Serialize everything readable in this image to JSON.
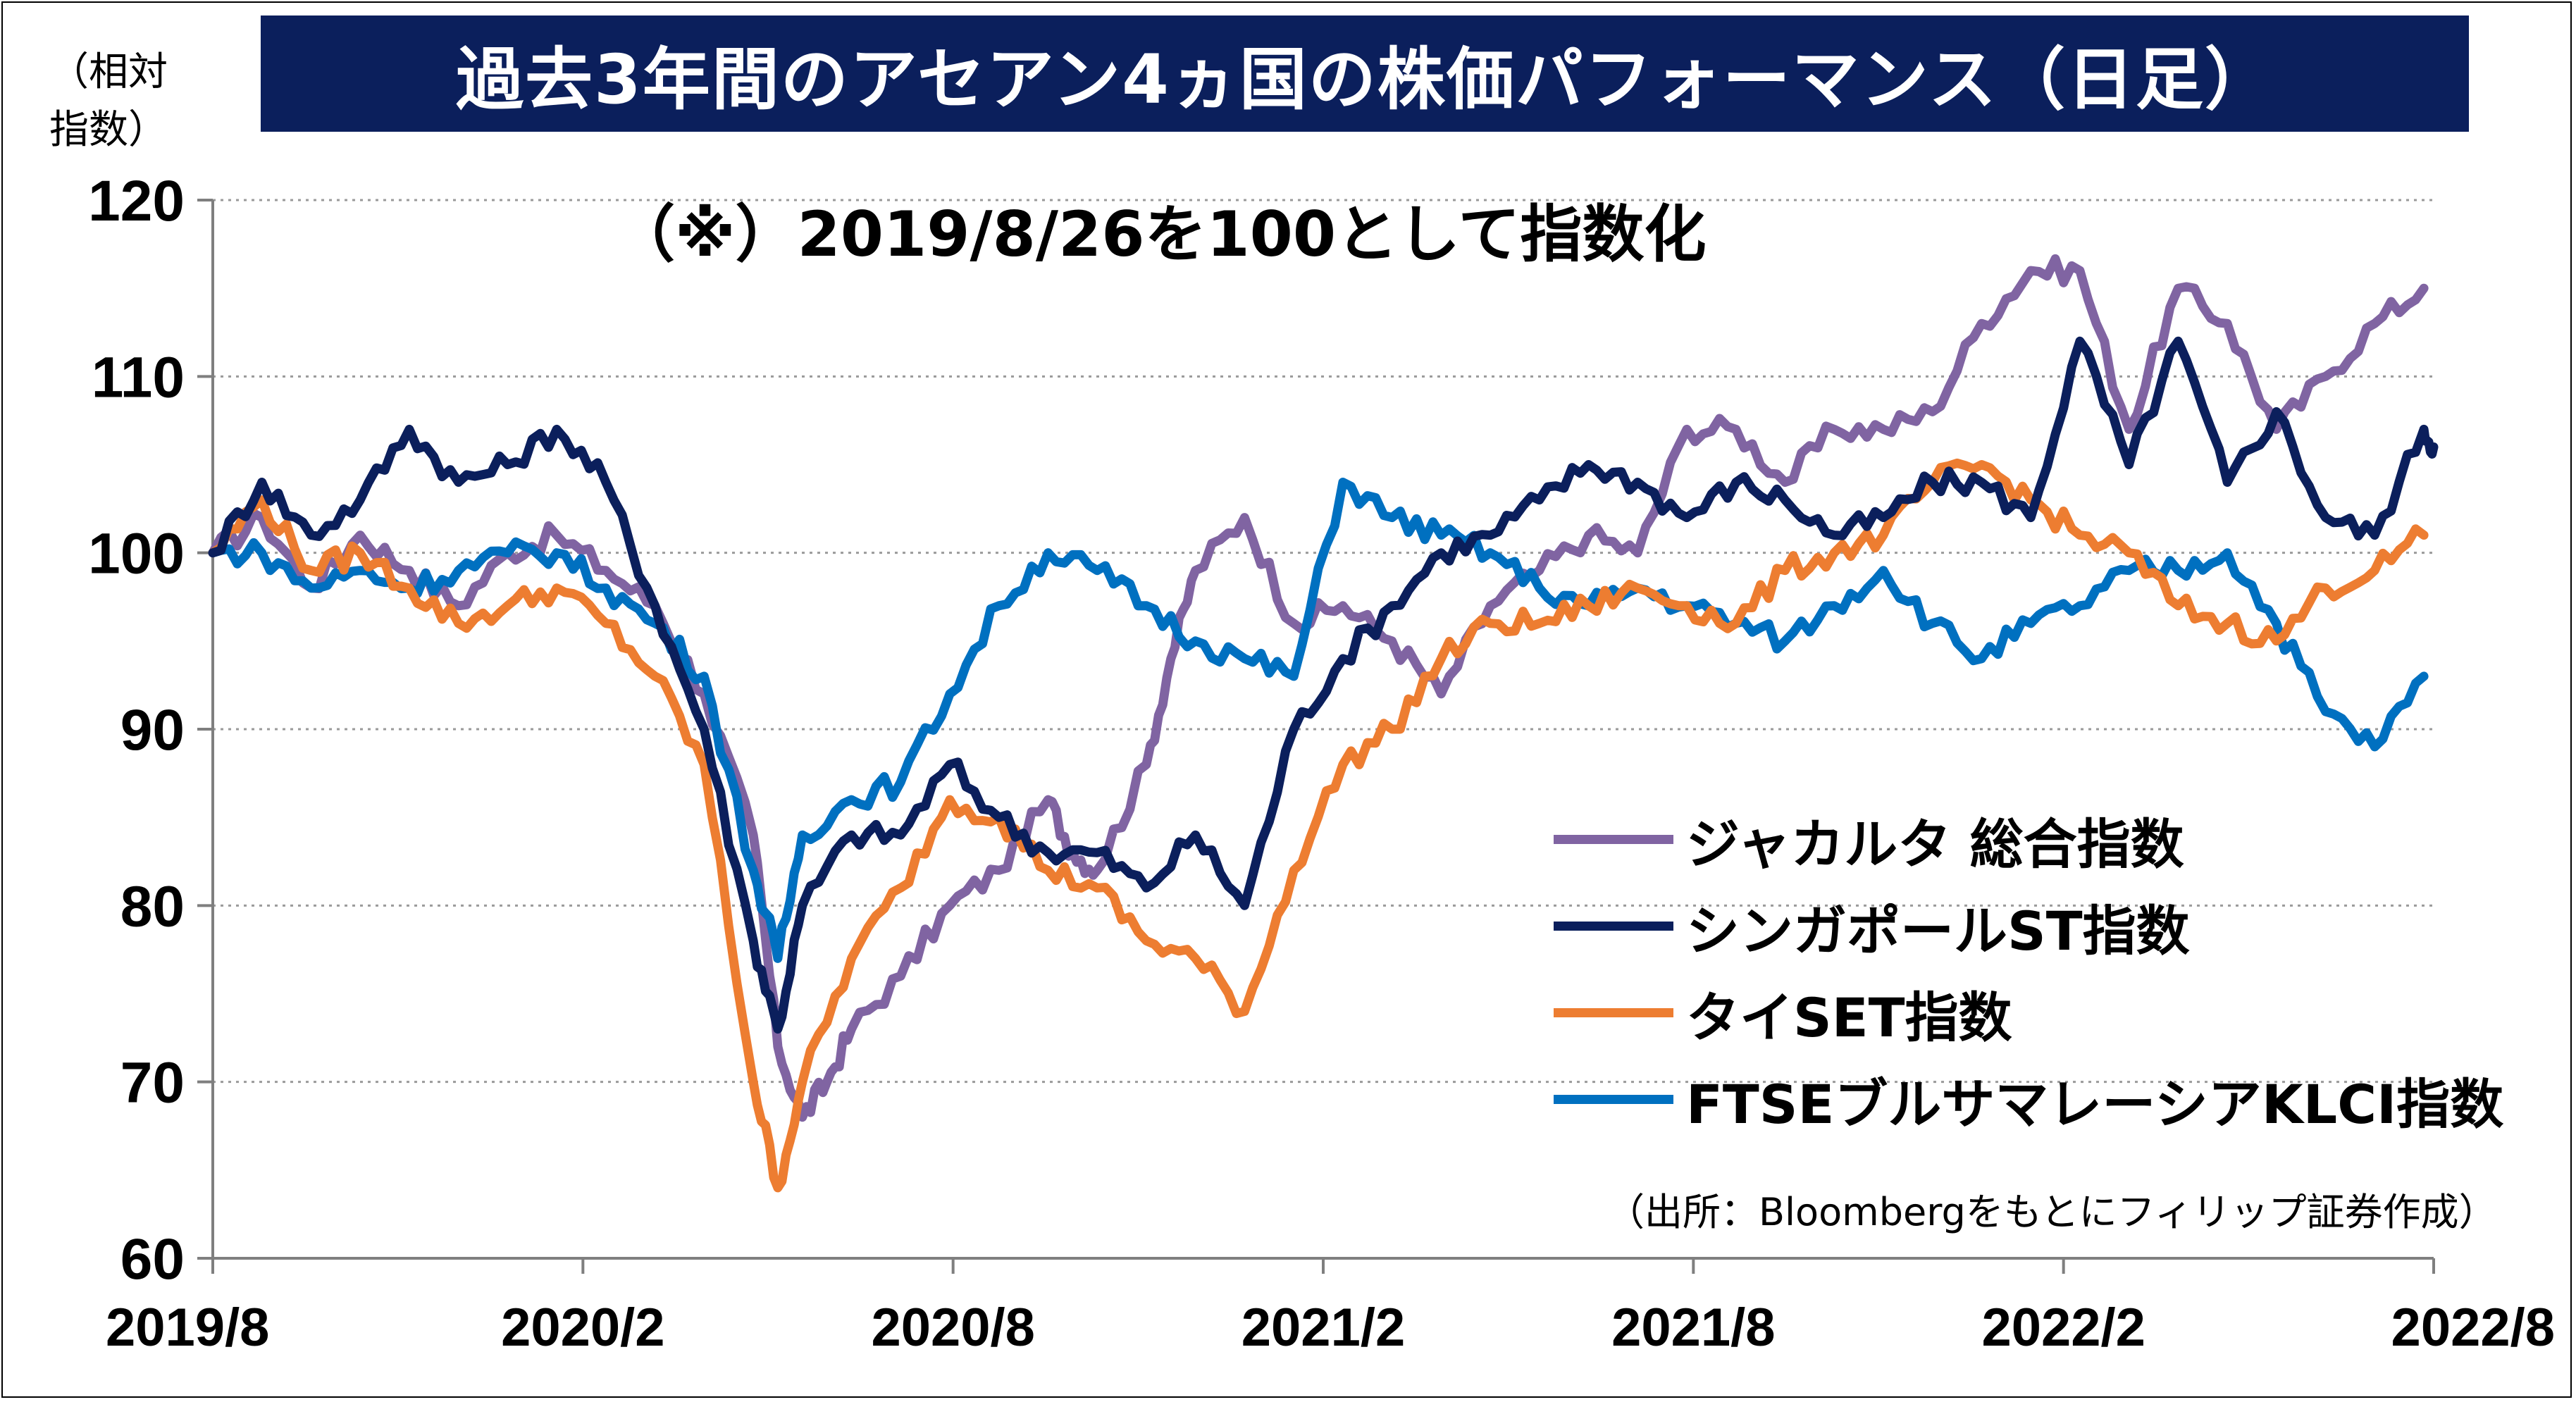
{
  "title": "過去3年間のアセアン4ヵ国の株価パフォーマンス（日足）",
  "y_unit": "（相対\n指数）",
  "note": "（※）2019/8/26を100として指数化",
  "source": "（出所：Bloombergをもとにフィリップ証券作成）",
  "chart_data": {
    "type": "line",
    "title": "過去3年間のアセアン4ヵ国の株価パフォーマンス（日足）",
    "xlabel": "",
    "ylabel": "（相対指数）",
    "ylim": [
      60,
      120
    ],
    "yticks": [
      "60",
      "70",
      "80",
      "90",
      "100",
      "110",
      "120"
    ],
    "xticks": [
      "2019/8",
      "2020/2",
      "2020/8",
      "2021/2",
      "2021/8",
      "2022/2",
      "2022/8"
    ],
    "grid": "horizontal dotted",
    "legend_position": "lower-right",
    "series": [
      {
        "name": "ジャカルタ 総合指数",
        "color": "#8064a2",
        "points": [
          [
            0,
            100
          ],
          [
            1,
            102
          ],
          [
            2,
            98
          ],
          [
            3,
            101
          ],
          [
            4,
            99
          ],
          [
            5,
            97
          ],
          [
            6,
            100
          ],
          [
            7,
            101
          ],
          [
            8,
            99
          ],
          [
            9,
            97
          ],
          [
            10,
            92
          ],
          [
            11,
            84
          ],
          [
            11.5,
            72
          ],
          [
            12,
            68
          ],
          [
            12.5,
            70
          ],
          [
            13,
            73
          ],
          [
            14,
            76
          ],
          [
            15,
            80
          ],
          [
            16,
            82
          ],
          [
            17,
            86
          ],
          [
            17.5,
            83
          ],
          [
            18,
            82
          ],
          [
            19,
            88
          ],
          [
            19.5,
            94
          ],
          [
            20,
            99
          ],
          [
            21,
            102
          ],
          [
            22,
            96
          ],
          [
            23,
            97
          ],
          [
            24,
            95
          ],
          [
            25,
            92
          ],
          [
            26,
            97
          ],
          [
            27,
            99
          ],
          [
            28,
            101
          ],
          [
            29,
            100
          ],
          [
            30,
            107
          ],
          [
            31,
            107
          ],
          [
            32,
            104
          ],
          [
            33,
            107
          ],
          [
            34,
            107
          ],
          [
            35,
            108
          ],
          [
            36,
            113
          ],
          [
            37,
            116
          ],
          [
            38,
            116
          ],
          [
            39,
            107
          ],
          [
            40,
            115
          ],
          [
            41,
            113
          ],
          [
            42,
            107
          ],
          [
            43,
            110
          ],
          [
            44,
            113
          ],
          [
            45,
            115
          ]
        ]
      },
      {
        "name": "シンガポールST指数",
        "color": "#0b1f5c",
        "points": [
          [
            0,
            100
          ],
          [
            1,
            104
          ],
          [
            2,
            101
          ],
          [
            3,
            103
          ],
          [
            4,
            107
          ],
          [
            5,
            104
          ],
          [
            6,
            105
          ],
          [
            7,
            107
          ],
          [
            8,
            104
          ],
          [
            9,
            97
          ],
          [
            10,
            90
          ],
          [
            11,
            78
          ],
          [
            11.5,
            73
          ],
          [
            12,
            80
          ],
          [
            13,
            84
          ],
          [
            14,
            84
          ],
          [
            15,
            88
          ],
          [
            16,
            85
          ],
          [
            17,
            83
          ],
          [
            18,
            83
          ],
          [
            19,
            81
          ],
          [
            20,
            84
          ],
          [
            21,
            80
          ],
          [
            22,
            90
          ],
          [
            23,
            94
          ],
          [
            24,
            97
          ],
          [
            25,
            100
          ],
          [
            26,
            101
          ],
          [
            27,
            103
          ],
          [
            28,
            105
          ],
          [
            29,
            104
          ],
          [
            30,
            102
          ],
          [
            31,
            104
          ],
          [
            32,
            103
          ],
          [
            33,
            101
          ],
          [
            34,
            102
          ],
          [
            35,
            104
          ],
          [
            36,
            104
          ],
          [
            37,
            102
          ],
          [
            38,
            112
          ],
          [
            39,
            105
          ],
          [
            40,
            112
          ],
          [
            41,
            104
          ],
          [
            42,
            108
          ],
          [
            43,
            102
          ],
          [
            44,
            101
          ],
          [
            45,
            107
          ],
          [
            45.2,
            106
          ]
        ]
      },
      {
        "name": "タイSET指数",
        "color": "#ed7d31",
        "points": [
          [
            0,
            100
          ],
          [
            1,
            103
          ],
          [
            2,
            99
          ],
          [
            3,
            100
          ],
          [
            4,
            98
          ],
          [
            5,
            96
          ],
          [
            6,
            97
          ],
          [
            7,
            98
          ],
          [
            8,
            96
          ],
          [
            9,
            93
          ],
          [
            10,
            88
          ],
          [
            11,
            70
          ],
          [
            11.5,
            64
          ],
          [
            12,
            70
          ],
          [
            13,
            77
          ],
          [
            14,
            81
          ],
          [
            15,
            86
          ],
          [
            16,
            85
          ],
          [
            17,
            82
          ],
          [
            18,
            81
          ],
          [
            19,
            78
          ],
          [
            20,
            77
          ],
          [
            21,
            74
          ],
          [
            22,
            82
          ],
          [
            23,
            88
          ],
          [
            24,
            90
          ],
          [
            25,
            94
          ],
          [
            26,
            96
          ],
          [
            27,
            96
          ],
          [
            28,
            97
          ],
          [
            29,
            98
          ],
          [
            30,
            97
          ],
          [
            31,
            96
          ],
          [
            32,
            99
          ],
          [
            33,
            100
          ],
          [
            34,
            101
          ],
          [
            35,
            104
          ],
          [
            36,
            105
          ],
          [
            37,
            103
          ],
          [
            38,
            101
          ],
          [
            39,
            100
          ],
          [
            40,
            97
          ],
          [
            41,
            96
          ],
          [
            42,
            95
          ],
          [
            43,
            98
          ],
          [
            44,
            99
          ],
          [
            45,
            101
          ]
        ]
      },
      {
        "name": "FTSEブルサマレーシアKLCI指数",
        "color": "#0070c0",
        "points": [
          [
            0,
            100
          ],
          [
            1,
            100
          ],
          [
            2,
            98
          ],
          [
            3,
            99
          ],
          [
            4,
            98
          ],
          [
            5,
            99
          ],
          [
            6,
            100
          ],
          [
            7,
            100
          ],
          [
            8,
            98
          ],
          [
            9,
            96
          ],
          [
            10,
            93
          ],
          [
            11,
            82
          ],
          [
            11.5,
            77
          ],
          [
            12,
            84
          ],
          [
            13,
            86
          ],
          [
            14,
            87
          ],
          [
            15,
            92
          ],
          [
            16,
            97
          ],
          [
            17,
            100
          ],
          [
            18,
            99
          ],
          [
            19,
            97
          ],
          [
            20,
            95
          ],
          [
            21,
            94
          ],
          [
            22,
            93
          ],
          [
            23,
            104
          ],
          [
            24,
            102
          ],
          [
            25,
            101
          ],
          [
            26,
            100
          ],
          [
            27,
            98
          ],
          [
            28,
            97
          ],
          [
            29,
            98
          ],
          [
            30,
            97
          ],
          [
            31,
            96
          ],
          [
            32,
            95
          ],
          [
            33,
            97
          ],
          [
            34,
            99
          ],
          [
            35,
            96
          ],
          [
            36,
            94
          ],
          [
            37,
            96
          ],
          [
            38,
            97
          ],
          [
            39,
            99
          ],
          [
            40,
            99
          ],
          [
            41,
            100
          ],
          [
            42,
            96
          ],
          [
            43,
            91
          ],
          [
            44,
            89
          ],
          [
            45,
            93
          ]
        ]
      }
    ]
  }
}
